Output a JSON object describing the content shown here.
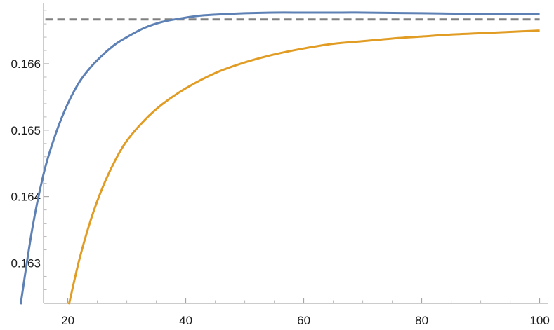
{
  "chart_data": {
    "type": "line",
    "title": "",
    "xlabel": "",
    "ylabel": "",
    "xlim": [
      10,
      100
    ],
    "ylim": [
      0.16238,
      0.16682
    ],
    "x_ticks": [
      20,
      40,
      60,
      80,
      100
    ],
    "x_tick_labels": [
      "20",
      "40",
      "60",
      "80",
      "100"
    ],
    "y_ticks": [
      0.163,
      0.164,
      0.165,
      0.166
    ],
    "y_tick_labels": [
      "0.163",
      "0.164",
      "0.165",
      "0.166"
    ],
    "grid": false,
    "reference_line": {
      "y": 0.166667,
      "style": "dashed",
      "color": "#808080"
    },
    "series": [
      {
        "color": "#5e81b5",
        "x": [
          12,
          14,
          16,
          18,
          20,
          22,
          24,
          26,
          28,
          30,
          33,
          36,
          39,
          42,
          45,
          50,
          55,
          60,
          65,
          70,
          80,
          90,
          100
        ],
        "y": [
          0.16238,
          0.16353,
          0.16438,
          0.16496,
          0.1654,
          0.16573,
          0.16596,
          0.16614,
          0.16629,
          0.1664,
          0.16654,
          0.16663,
          0.16668,
          0.16672,
          0.16674,
          0.16676,
          0.16677,
          0.16677,
          0.16677,
          0.16677,
          0.16676,
          0.16675,
          0.16675
        ]
      },
      {
        "color": "#e19c24",
        "x": [
          20.2,
          22,
          24,
          26,
          28,
          30,
          33,
          36,
          40,
          45,
          50,
          55,
          60,
          65,
          70,
          75,
          80,
          85,
          90,
          95,
          100
        ],
        "y": [
          0.16238,
          0.16307,
          0.16368,
          0.16416,
          0.16454,
          0.16484,
          0.16515,
          0.16539,
          0.16563,
          0.16586,
          0.16602,
          0.16614,
          0.16623,
          0.1663,
          0.16634,
          0.16638,
          0.16641,
          0.16644,
          0.16646,
          0.16648,
          0.1665
        ]
      }
    ]
  }
}
